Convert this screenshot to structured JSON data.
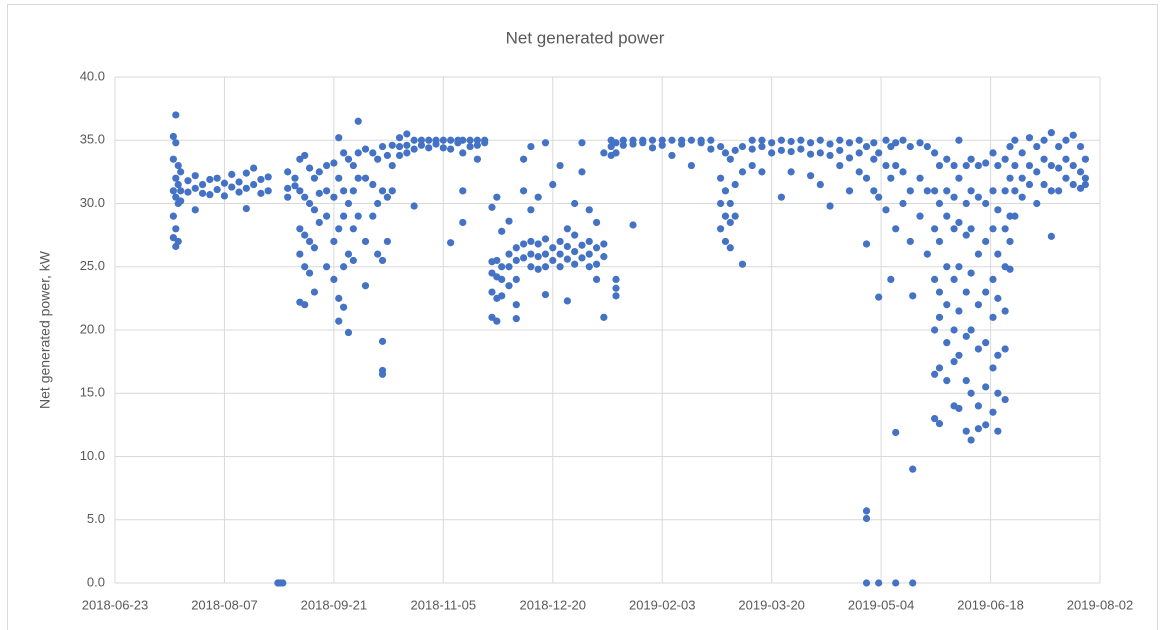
{
  "chart_data": {
    "type": "scatter",
    "title": "Net generated power",
    "y_label": "Net generated power, kW",
    "color": "#4472c4",
    "grid": true,
    "xlim": [
      "2018-06-23",
      "2019-08-02"
    ],
    "xticks": [
      "2018-06-23",
      "2018-08-07",
      "2018-09-21",
      "2018-11-05",
      "2018-12-20",
      "2019-02-03",
      "2019-03-20",
      "2019-05-04",
      "2019-06-18",
      "2019-08-02"
    ],
    "ylim": [
      0,
      40
    ],
    "yticks": [
      {
        "value": 0,
        "label": "0.0"
      },
      {
        "value": 5,
        "label": "5.0"
      },
      {
        "value": 10,
        "label": "10.0"
      },
      {
        "value": 15,
        "label": "15.0"
      },
      {
        "value": 20,
        "label": "20.0"
      },
      {
        "value": 25,
        "label": "25.0"
      },
      {
        "value": 30,
        "label": "30.0"
      },
      {
        "value": 35,
        "label": "35.0"
      },
      {
        "value": 40,
        "label": "40.0"
      }
    ],
    "x": [
      "2018-07-17",
      "2018-07-17",
      "2018-07-17",
      "2018-07-17",
      "2018-07-17",
      "2018-07-18",
      "2018-07-18",
      "2018-07-18",
      "2018-07-18",
      "2018-07-18",
      "2018-07-18",
      "2018-07-19",
      "2018-07-19",
      "2018-07-19",
      "2018-07-19",
      "2018-07-20",
      "2018-07-20",
      "2018-07-20",
      "2018-07-23",
      "2018-07-23",
      "2018-07-26",
      "2018-07-26",
      "2018-07-26",
      "2018-07-29",
      "2018-07-29",
      "2018-08-01",
      "2018-08-01",
      "2018-08-04",
      "2018-08-04",
      "2018-08-07",
      "2018-08-07",
      "2018-08-10",
      "2018-08-10",
      "2018-08-13",
      "2018-08-13",
      "2018-08-16",
      "2018-08-16",
      "2018-08-16",
      "2018-08-19",
      "2018-08-19",
      "2018-08-22",
      "2018-08-22",
      "2018-08-25",
      "2018-08-25",
      "2018-08-29",
      "2018-08-29",
      "2018-08-30",
      "2018-08-31",
      "2018-09-02",
      "2018-09-02",
      "2018-09-02",
      "2018-09-05",
      "2018-09-05",
      "2018-09-07",
      "2018-09-07",
      "2018-09-07",
      "2018-09-07",
      "2018-09-07",
      "2018-09-09",
      "2018-09-09",
      "2018-09-09",
      "2018-09-09",
      "2018-09-09",
      "2018-09-11",
      "2018-09-11",
      "2018-09-11",
      "2018-09-11",
      "2018-09-13",
      "2018-09-13",
      "2018-09-13",
      "2018-09-13",
      "2018-09-15",
      "2018-09-15",
      "2018-09-15",
      "2018-09-18",
      "2018-09-18",
      "2018-09-18",
      "2018-09-18",
      "2018-09-21",
      "2018-09-21",
      "2018-09-21",
      "2018-09-21",
      "2018-09-23",
      "2018-09-23",
      "2018-09-23",
      "2018-09-23",
      "2018-09-23",
      "2018-09-25",
      "2018-09-25",
      "2018-09-25",
      "2018-09-25",
      "2018-09-25",
      "2018-09-27",
      "2018-09-27",
      "2018-09-27",
      "2018-09-27",
      "2018-09-29",
      "2018-09-29",
      "2018-09-29",
      "2018-09-29",
      "2018-10-01",
      "2018-10-01",
      "2018-10-01",
      "2018-10-01",
      "2018-10-04",
      "2018-10-04",
      "2018-10-04",
      "2018-10-04",
      "2018-10-07",
      "2018-10-07",
      "2018-10-07",
      "2018-10-09",
      "2018-10-09",
      "2018-10-09",
      "2018-10-11",
      "2018-10-11",
      "2018-10-11",
      "2018-10-11",
      "2018-10-11",
      "2018-10-11",
      "2018-10-13",
      "2018-10-13",
      "2018-10-13",
      "2018-10-15",
      "2018-10-15",
      "2018-10-15",
      "2018-10-18",
      "2018-10-18",
      "2018-10-18",
      "2018-10-21",
      "2018-10-21",
      "2018-10-21",
      "2018-10-24",
      "2018-10-24",
      "2018-10-24",
      "2018-10-27",
      "2018-10-27",
      "2018-10-30",
      "2018-10-30",
      "2018-11-02",
      "2018-11-02",
      "2018-11-05",
      "2018-11-05",
      "2018-11-08",
      "2018-11-08",
      "2018-11-08",
      "2018-11-11",
      "2018-11-11",
      "2018-11-13",
      "2018-11-13",
      "2018-11-13",
      "2018-11-13",
      "2018-11-16",
      "2018-11-16",
      "2018-11-19",
      "2018-11-19",
      "2018-11-19",
      "2018-11-22",
      "2018-11-22",
      "2018-11-25",
      "2018-11-25",
      "2018-11-25",
      "2018-11-25",
      "2018-11-25",
      "2018-11-27",
      "2018-11-27",
      "2018-11-27",
      "2018-11-27",
      "2018-11-27",
      "2018-11-29",
      "2018-11-29",
      "2018-11-29",
      "2018-11-29",
      "2018-12-02",
      "2018-12-02",
      "2018-12-02",
      "2018-12-02",
      "2018-12-05",
      "2018-12-05",
      "2018-12-05",
      "2018-12-05",
      "2018-12-05",
      "2018-12-08",
      "2018-12-08",
      "2018-12-08",
      "2018-12-08",
      "2018-12-11",
      "2018-12-11",
      "2018-12-11",
      "2018-12-11",
      "2018-12-11",
      "2018-12-14",
      "2018-12-14",
      "2018-12-14",
      "2018-12-14",
      "2018-12-17",
      "2018-12-17",
      "2018-12-17",
      "2018-12-17",
      "2018-12-17",
      "2018-12-20",
      "2018-12-20",
      "2018-12-20",
      "2018-12-23",
      "2018-12-23",
      "2018-12-23",
      "2018-12-23",
      "2018-12-26",
      "2018-12-26",
      "2018-12-26",
      "2018-12-26",
      "2018-12-29",
      "2018-12-29",
      "2018-12-29",
      "2018-12-29",
      "2019-01-01",
      "2019-01-01",
      "2019-01-01",
      "2019-01-01",
      "2019-01-04",
      "2019-01-04",
      "2019-01-04",
      "2019-01-04",
      "2019-01-07",
      "2019-01-07",
      "2019-01-07",
      "2019-01-07",
      "2019-01-10",
      "2019-01-10",
      "2019-01-10",
      "2019-01-10",
      "2019-01-13",
      "2019-01-13",
      "2019-01-13",
      "2019-01-15",
      "2019-01-15",
      "2019-01-15",
      "2019-01-15",
      "2019-01-15",
      "2019-01-18",
      "2019-01-18",
      "2019-01-22",
      "2019-01-22",
      "2019-01-22",
      "2019-01-26",
      "2019-01-26",
      "2019-01-30",
      "2019-01-30",
      "2019-02-03",
      "2019-02-03",
      "2019-02-07",
      "2019-02-07",
      "2019-02-11",
      "2019-02-11",
      "2019-02-15",
      "2019-02-15",
      "2019-02-19",
      "2019-02-19",
      "2019-02-23",
      "2019-02-23",
      "2019-02-27",
      "2019-02-27",
      "2019-02-27",
      "2019-02-27",
      "2019-03-01",
      "2019-03-01",
      "2019-03-01",
      "2019-03-01",
      "2019-03-03",
      "2019-03-03",
      "2019-03-03",
      "2019-03-03",
      "2019-03-05",
      "2019-03-05",
      "2019-03-05",
      "2019-03-08",
      "2019-03-08",
      "2019-03-08",
      "2019-03-12",
      "2019-03-12",
      "2019-03-12",
      "2019-03-16",
      "2019-03-16",
      "2019-03-16",
      "2019-03-20",
      "2019-03-20",
      "2019-03-24",
      "2019-03-24",
      "2019-03-24",
      "2019-03-28",
      "2019-03-28",
      "2019-03-28",
      "2019-04-01",
      "2019-04-01",
      "2019-04-05",
      "2019-04-05",
      "2019-04-05",
      "2019-04-09",
      "2019-04-09",
      "2019-04-09",
      "2019-04-13",
      "2019-04-13",
      "2019-04-13",
      "2019-04-17",
      "2019-04-17",
      "2019-04-17",
      "2019-04-21",
      "2019-04-21",
      "2019-04-21",
      "2019-04-25",
      "2019-04-25",
      "2019-04-25",
      "2019-04-28",
      "2019-04-28",
      "2019-04-28",
      "2019-04-28",
      "2019-04-28",
      "2019-04-28",
      "2019-05-01",
      "2019-05-01",
      "2019-05-01",
      "2019-05-03",
      "2019-05-03",
      "2019-05-03",
      "2019-05-03",
      "2019-05-06",
      "2019-05-06",
      "2019-05-06",
      "2019-05-08",
      "2019-05-08",
      "2019-05-08",
      "2019-05-10",
      "2019-05-10",
      "2019-05-10",
      "2019-05-10",
      "2019-05-10",
      "2019-05-13",
      "2019-05-13",
      "2019-05-13",
      "2019-05-16",
      "2019-05-16",
      "2019-05-16",
      "2019-05-17",
      "2019-05-17",
      "2019-05-17",
      "2019-05-20",
      "2019-05-20",
      "2019-05-20",
      "2019-05-23",
      "2019-05-23",
      "2019-05-23",
      "2019-05-26",
      "2019-05-26",
      "2019-05-26",
      "2019-05-26",
      "2019-05-26",
      "2019-05-26",
      "2019-05-26",
      "2019-05-28",
      "2019-05-28",
      "2019-05-28",
      "2019-05-28",
      "2019-05-28",
      "2019-05-28",
      "2019-05-28",
      "2019-05-31",
      "2019-05-31",
      "2019-05-31",
      "2019-05-31",
      "2019-05-31",
      "2019-05-31",
      "2019-05-31",
      "2019-06-03",
      "2019-06-03",
      "2019-06-03",
      "2019-06-03",
      "2019-06-03",
      "2019-06-03",
      "2019-06-03",
      "2019-06-05",
      "2019-06-05",
      "2019-06-05",
      "2019-06-05",
      "2019-06-05",
      "2019-06-05",
      "2019-06-05",
      "2019-06-08",
      "2019-06-08",
      "2019-06-08",
      "2019-06-08",
      "2019-06-08",
      "2019-06-08",
      "2019-06-08",
      "2019-06-10",
      "2019-06-10",
      "2019-06-10",
      "2019-06-10",
      "2019-06-10",
      "2019-06-10",
      "2019-06-10",
      "2019-06-13",
      "2019-06-13",
      "2019-06-13",
      "2019-06-13",
      "2019-06-13",
      "2019-06-13",
      "2019-06-13",
      "2019-06-16",
      "2019-06-16",
      "2019-06-16",
      "2019-06-16",
      "2019-06-16",
      "2019-06-16",
      "2019-06-16",
      "2019-06-19",
      "2019-06-19",
      "2019-06-19",
      "2019-06-19",
      "2019-06-19",
      "2019-06-19",
      "2019-06-19",
      "2019-06-21",
      "2019-06-21",
      "2019-06-21",
      "2019-06-21",
      "2019-06-21",
      "2019-06-21",
      "2019-06-21",
      "2019-06-24",
      "2019-06-24",
      "2019-06-24",
      "2019-06-24",
      "2019-06-24",
      "2019-06-24",
      "2019-06-24",
      "2019-06-26",
      "2019-06-26",
      "2019-06-26",
      "2019-06-26",
      "2019-06-26",
      "2019-06-28",
      "2019-06-28",
      "2019-06-28",
      "2019-06-28",
      "2019-07-01",
      "2019-07-01",
      "2019-07-01",
      "2019-07-04",
      "2019-07-04",
      "2019-07-04",
      "2019-07-07",
      "2019-07-07",
      "2019-07-07",
      "2019-07-10",
      "2019-07-10",
      "2019-07-10",
      "2019-07-13",
      "2019-07-13",
      "2019-07-13",
      "2019-07-13",
      "2019-07-16",
      "2019-07-16",
      "2019-07-16",
      "2019-07-19",
      "2019-07-19",
      "2019-07-19",
      "2019-07-22",
      "2019-07-22",
      "2019-07-22",
      "2019-07-25",
      "2019-07-25",
      "2019-07-25",
      "2019-07-27",
      "2019-07-27",
      "2019-07-27"
    ],
    "values": [
      35.3,
      33.5,
      31,
      29,
      27.3,
      37,
      34.8,
      32,
      30.5,
      28,
      26.6,
      33,
      31.5,
      30,
      27,
      32.5,
      31,
      30.2,
      31.8,
      30.9,
      32.2,
      31.2,
      29.5,
      31.5,
      30.8,
      31.9,
      30.7,
      32,
      31.1,
      31.6,
      30.6,
      32.3,
      31.3,
      31.7,
      30.9,
      32.4,
      31.2,
      29.6,
      32.8,
      31.5,
      31.9,
      30.8,
      32.1,
      31,
      0,
      0,
      0,
      0,
      32.5,
      31.2,
      30.5,
      32,
      31.4,
      33.5,
      31,
      28,
      26,
      22.2,
      33.8,
      30.5,
      27.5,
      25,
      22,
      32.8,
      30,
      27,
      24.5,
      32,
      29.5,
      26.5,
      23,
      32.5,
      30.8,
      28.5,
      33,
      31,
      29,
      25,
      33.2,
      30.5,
      27,
      24,
      35.2,
      32,
      28,
      22.5,
      20.7,
      34,
      31,
      29,
      25,
      21.8,
      33.5,
      30,
      26,
      19.8,
      33,
      31,
      28,
      25.5,
      36.5,
      34,
      32,
      29,
      34.3,
      32,
      27,
      23.5,
      34,
      31.5,
      29,
      33.5,
      30,
      26,
      34.5,
      31,
      25.5,
      19.1,
      16.5,
      16.8,
      33.8,
      30.5,
      27,
      34.6,
      33,
      31,
      35.2,
      34.5,
      33.8,
      35.5,
      34.6,
      34,
      35,
      34.3,
      29.8,
      35,
      34.6,
      35,
      34.4,
      35,
      34.7,
      35,
      34.4,
      35,
      34.3,
      26.9,
      35,
      34.8,
      35,
      34,
      31,
      28.5,
      35,
      34.5,
      35,
      34.6,
      33.5,
      35,
      34.8,
      25.4,
      24.5,
      23,
      21,
      29.7,
      25.5,
      24.2,
      22.5,
      20.7,
      30.5,
      25,
      24,
      22.7,
      27.8,
      26,
      25,
      23.5,
      28.6,
      26.5,
      25.5,
      24,
      22,
      20.9,
      26.8,
      25.7,
      31,
      33.5,
      27,
      26,
      25,
      29.5,
      34.5,
      26.8,
      25.8,
      24.8,
      30.5,
      27.2,
      26,
      25,
      22.8,
      34.8,
      26.5,
      25.5,
      31.5,
      27,
      26,
      25,
      33,
      26.6,
      25.6,
      22.3,
      28,
      27.5,
      26.2,
      25.2,
      30,
      26.7,
      25.7,
      32.5,
      34.8,
      27,
      26,
      25,
      29.5,
      26.5,
      25.2,
      24,
      28.5,
      26.8,
      25.8,
      34,
      21,
      35,
      34.5,
      33.8,
      34.8,
      34,
      24,
      23.3,
      22.7,
      35,
      34.6,
      35,
      34.7,
      28.3,
      35,
      34.8,
      35,
      34.4,
      35,
      34.6,
      35,
      33.8,
      35,
      34.7,
      35,
      33,
      35,
      34.8,
      35,
      34.3,
      34.5,
      32,
      30,
      28,
      34,
      31,
      29,
      27,
      33.5,
      30,
      28.5,
      26.5,
      34.2,
      31.5,
      29,
      34.5,
      32.5,
      25.2,
      35,
      34.3,
      33,
      35,
      34.5,
      32.5,
      34.8,
      34,
      35,
      34.2,
      30.5,
      34.9,
      34.1,
      32.5,
      35,
      34.3,
      34.8,
      33.9,
      32.2,
      35,
      34,
      31.5,
      34.7,
      33.8,
      29.8,
      35,
      34.2,
      33,
      34.8,
      33.6,
      31,
      35,
      34,
      32.5,
      0,
      5.7,
      5.1,
      26.8,
      32,
      34.5,
      34.8,
      33.5,
      31,
      0,
      22.6,
      34,
      30.5,
      35,
      33,
      29.5,
      34.5,
      32,
      24,
      0,
      11.9,
      34.8,
      33,
      28,
      35,
      32.5,
      30,
      34.5,
      31,
      27,
      0,
      9,
      22.7,
      34.8,
      32,
      29,
      34.5,
      31,
      26,
      34,
      31,
      28,
      24,
      20,
      16.5,
      13,
      33,
      30,
      27,
      23,
      21,
      17,
      12.6,
      33.5,
      31,
      29,
      25,
      22,
      19,
      16,
      33,
      30.5,
      28,
      24,
      20,
      17.5,
      14,
      35,
      32,
      28.5,
      25,
      21.5,
      18,
      13.8,
      33,
      30,
      27.5,
      23,
      19.5,
      16,
      12,
      33.5,
      31,
      28,
      24.5,
      20,
      15,
      11.3,
      33,
      30.5,
      26,
      22,
      18.5,
      14,
      12.2,
      33.2,
      30,
      27,
      23,
      19,
      15.5,
      12.5,
      34,
      31,
      28,
      24,
      21,
      17,
      13.5,
      33,
      29.5,
      26,
      22.5,
      18,
      15,
      12,
      33.5,
      31,
      28,
      25,
      21.5,
      18.5,
      14.5,
      34.5,
      32,
      29,
      27,
      24.8,
      35,
      33,
      31,
      29,
      34,
      32,
      30.5,
      35.2,
      33,
      31.5,
      34.5,
      32.5,
      30,
      35,
      33.5,
      31.5,
      35.6,
      33,
      31,
      27.4,
      34.5,
      32.8,
      31,
      35,
      33.5,
      32,
      35.4,
      33,
      31.5,
      34.5,
      32.5,
      31.2,
      33.5,
      32,
      31.5
    ]
  }
}
